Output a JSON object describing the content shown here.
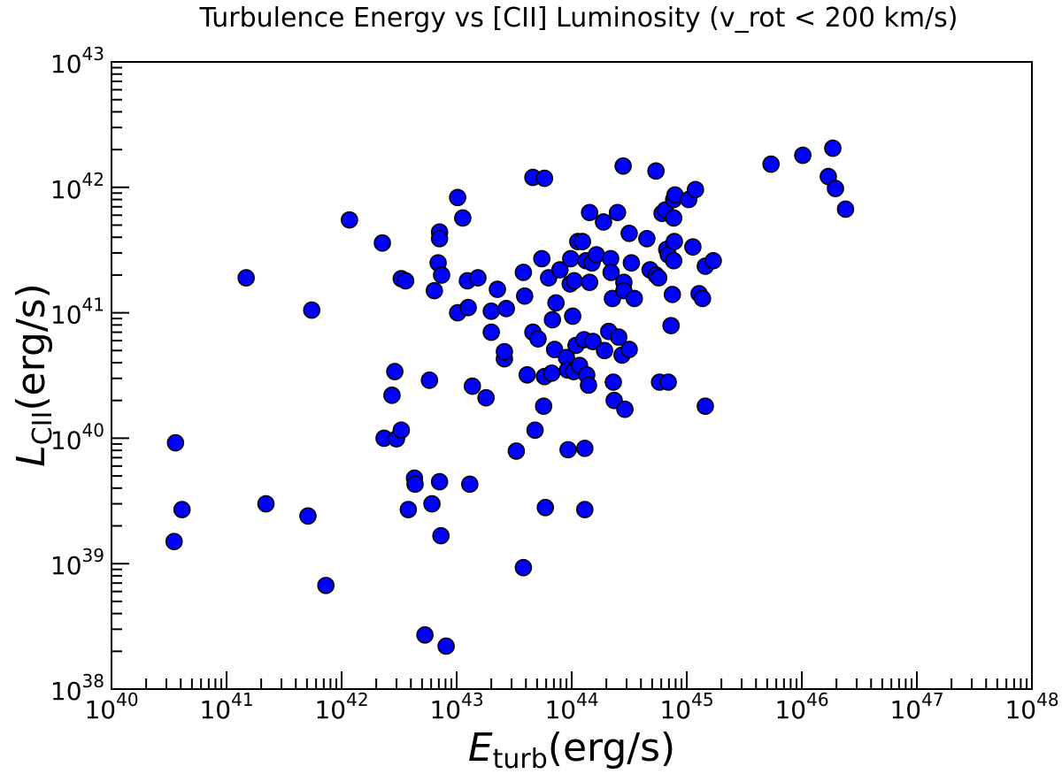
{
  "chart_data": {
    "type": "scatter",
    "title": "Turbulence Energy vs [CII] Luminosity (v_rot < 200 km/s)",
    "xlabel": {
      "main": "E",
      "sub": "turb",
      "unit": "(erg/s)"
    },
    "ylabel": {
      "main": "L",
      "sub": "CII",
      "unit": "(erg/s)"
    },
    "xscale": "log",
    "yscale": "log",
    "xlim": [
      1e+40,
      1e+48
    ],
    "ylim": [
      1e+38,
      1e+43
    ],
    "x_ticks": [
      {
        "base": "10",
        "exp": "40"
      },
      {
        "base": "10",
        "exp": "41"
      },
      {
        "base": "10",
        "exp": "42"
      },
      {
        "base": "10",
        "exp": "43"
      },
      {
        "base": "10",
        "exp": "44"
      },
      {
        "base": "10",
        "exp": "45"
      },
      {
        "base": "10",
        "exp": "46"
      },
      {
        "base": "10",
        "exp": "47"
      },
      {
        "base": "10",
        "exp": "48"
      }
    ],
    "y_ticks": [
      {
        "base": "10",
        "exp": "38"
      },
      {
        "base": "10",
        "exp": "39"
      },
      {
        "base": "10",
        "exp": "40"
      },
      {
        "base": "10",
        "exp": "41"
      },
      {
        "base": "10",
        "exp": "42"
      },
      {
        "base": "10",
        "exp": "43"
      }
    ],
    "grid": false,
    "marker_color": "#0000ff",
    "marker_edge": "#000000",
    "x": [
      3.6e+40,
      3.5e+40,
      4.1e+40,
      1.48e+41,
      2.2e+41,
      5.1e+41,
      5.5e+41,
      7.3e+41,
      1.17e+42,
      2.26e+42,
      2.34e+42,
      2.74e+42,
      2.9e+42,
      3e+42,
      3.3e+42,
      3.3e+42,
      3.6e+42,
      3.8e+42,
      4.3e+42,
      4.35e+42,
      5.8e+42,
      6.1e+42,
      6.4e+42,
      6.9e+42,
      7.1e+42,
      7.1e+42,
      7.1e+42,
      7.4e+42,
      7.3e+42,
      5.3e+42,
      8.1e+42,
      1.02e+43,
      1.02e+43,
      1.13e+43,
      1.24e+43,
      1.26e+43,
      1.3e+43,
      1.37e+43,
      1.53e+43,
      1.8e+43,
      2e+43,
      2e+43,
      2.26e+43,
      2.6e+43,
      2.6e+43,
      2.7e+43,
      3.3e+43,
      3.8e+43,
      3.8e+43,
      3.9e+43,
      4.1e+43,
      4.6e+43,
      4.6e+43,
      4.8e+43,
      5.1e+43,
      5.5e+43,
      5.7e+43,
      5.8e+43,
      5.8e+43,
      5.9e+43,
      6.3e+43,
      6.8e+43,
      6.7e+43,
      7.1e+43,
      7.3e+43,
      7.9e+43,
      9e+43,
      9.2e+43,
      9.3e+43,
      9.7e+43,
      9.8e+43,
      1.02e+44,
      1.05e+44,
      1.09e+44,
      1.04e+44,
      1.13e+44,
      1.17e+44,
      1.24e+44,
      1.28e+44,
      1.3e+44,
      1.3e+44,
      1.33e+44,
      1.35e+44,
      1.4e+44,
      1.43e+44,
      1.43e+44,
      1.5e+44,
      1.53e+44,
      1.64e+44,
      1.89e+44,
      1.93e+44,
      2.1e+44,
      2.18e+44,
      2.2e+44,
      2.3e+44,
      2.34e+44,
      2.26e+44,
      2.5e+44,
      2.56e+44,
      2.74e+44,
      2.8e+44,
      2.84e+44,
      2.84e+44,
      2.9e+44,
      3.16e+44,
      3.16e+44,
      3.3e+44,
      3.5e+44,
      4.5e+44,
      4.8e+44,
      5.4e+44,
      5.4e+44,
      5.7e+44,
      5.8e+44,
      6.1e+44,
      6.5e+44,
      6.9e+44,
      6.7e+44,
      6.9e+44,
      7.3e+44,
      7.5e+44,
      7.7e+44,
      7.7e+44,
      7.7e+44,
      7.8e+44,
      7.9e+44,
      1.04e+45,
      1.13e+45,
      1.19e+45,
      1.28e+45,
      1.37e+45,
      1.45e+45,
      1.45e+45,
      1.7e+45,
      5.4e+45,
      1.02e+46,
      1.7e+46,
      1.86e+46,
      1.96e+46,
      2.4e+46
    ],
    "y": [
      9.2e+39,
      1.5e+39,
      2.7e+39,
      1.9e+41,
      3e+39,
      2.4e+39,
      1.05e+41,
      6.7e+38,
      5.5e+41,
      3.6e+41,
      1e+40,
      2.2e+40,
      3.4e+40,
      9.9e+39,
      1.16e+40,
      1.87e+41,
      1.8e+41,
      2.7e+39,
      4.8e+39,
      4.3e+39,
      2.9e+40,
      3e+39,
      1.5e+41,
      2.5e+41,
      4.5e+39,
      4.4e+41,
      3.9e+41,
      2e+41,
      1.67e+39,
      2.7e+38,
      2.2e+38,
      8.3e+41,
      1e+41,
      5.7e+41,
      1.8e+41,
      1.1e+41,
      4.3e+39,
      2.6e+40,
      1.9e+41,
      2.1e+40,
      7e+40,
      1.03e+41,
      1.54e+41,
      4.3e+40,
      4.9e+40,
      1.08e+41,
      7.9e+39,
      9.3e+38,
      2.1e+41,
      1.36e+41,
      3.2e+40,
      1.2e+42,
      7e+40,
      1.16e+40,
      6.2e+40,
      2.7e+41,
      1.8e+40,
      1.18e+42,
      3.1e+40,
      2.8e+39,
      1.9e+41,
      8.8e+40,
      3.3e+40,
      5.1e+40,
      1.2e+41,
      2.2e+41,
      4.4e+40,
      3.5e+40,
      8.1e+39,
      1.7e+41,
      2.7e+41,
      9.4e+40,
      1.8e+41,
      5.5e+40,
      3.4e+40,
      3.7e+41,
      3.8e+40,
      3.7e+41,
      6.1e+40,
      8.3e+39,
      2.7e+39,
      2.6e+41,
      3.2e+40,
      2.65e+40,
      1.75e+41,
      6.3e+41,
      2.5e+41,
      5.9e+40,
      2.9e+41,
      5.3e+41,
      5e+40,
      7.1e+40,
      2.7e+41,
      2.1e+41,
      2.8e+40,
      2e+40,
      1.3e+41,
      6.3e+41,
      6.4e+40,
      4.6e+40,
      1.48e+42,
      1.75e+41,
      1.5e+41,
      1.7e+40,
      4.3e+41,
      5.1e+40,
      2.5e+41,
      1.3e+41,
      3.9e+41,
      2.2e+41,
      1.35e+42,
      2e+41,
      1.9e+41,
      2.8e+40,
      6.2e+41,
      6.6e+41,
      2.8e+40,
      3.2e+41,
      2.9e+41,
      7.9e+40,
      1.4e+41,
      8e+41,
      5.7e+41,
      2.6e+41,
      3.7e+41,
      8.7e+41,
      8e+41,
      3.35e+41,
      9.6e+41,
      1.42e+41,
      1.3e+41,
      1.8e+40,
      2.35e+41,
      2.6e+41,
      1.53e+42,
      1.8e+42,
      1.22e+42,
      2.05e+42,
      9.8e+41,
      6.7e+41
    ]
  }
}
